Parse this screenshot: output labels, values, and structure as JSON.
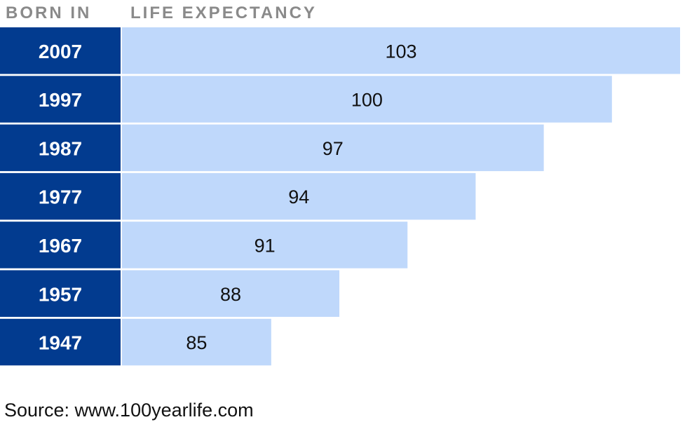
{
  "chart_data": {
    "type": "bar",
    "category_header": "BORN IN",
    "value_header": "LIFE EXPECTANCY",
    "categories": [
      "2007",
      "1997",
      "1987",
      "1977",
      "1967",
      "1957",
      "1947"
    ],
    "values": [
      103,
      100,
      97,
      94,
      91,
      88,
      85
    ],
    "category_color": "#023b8f",
    "color": "#bfd8fb",
    "source": "Source: www.100yearlife.com"
  }
}
